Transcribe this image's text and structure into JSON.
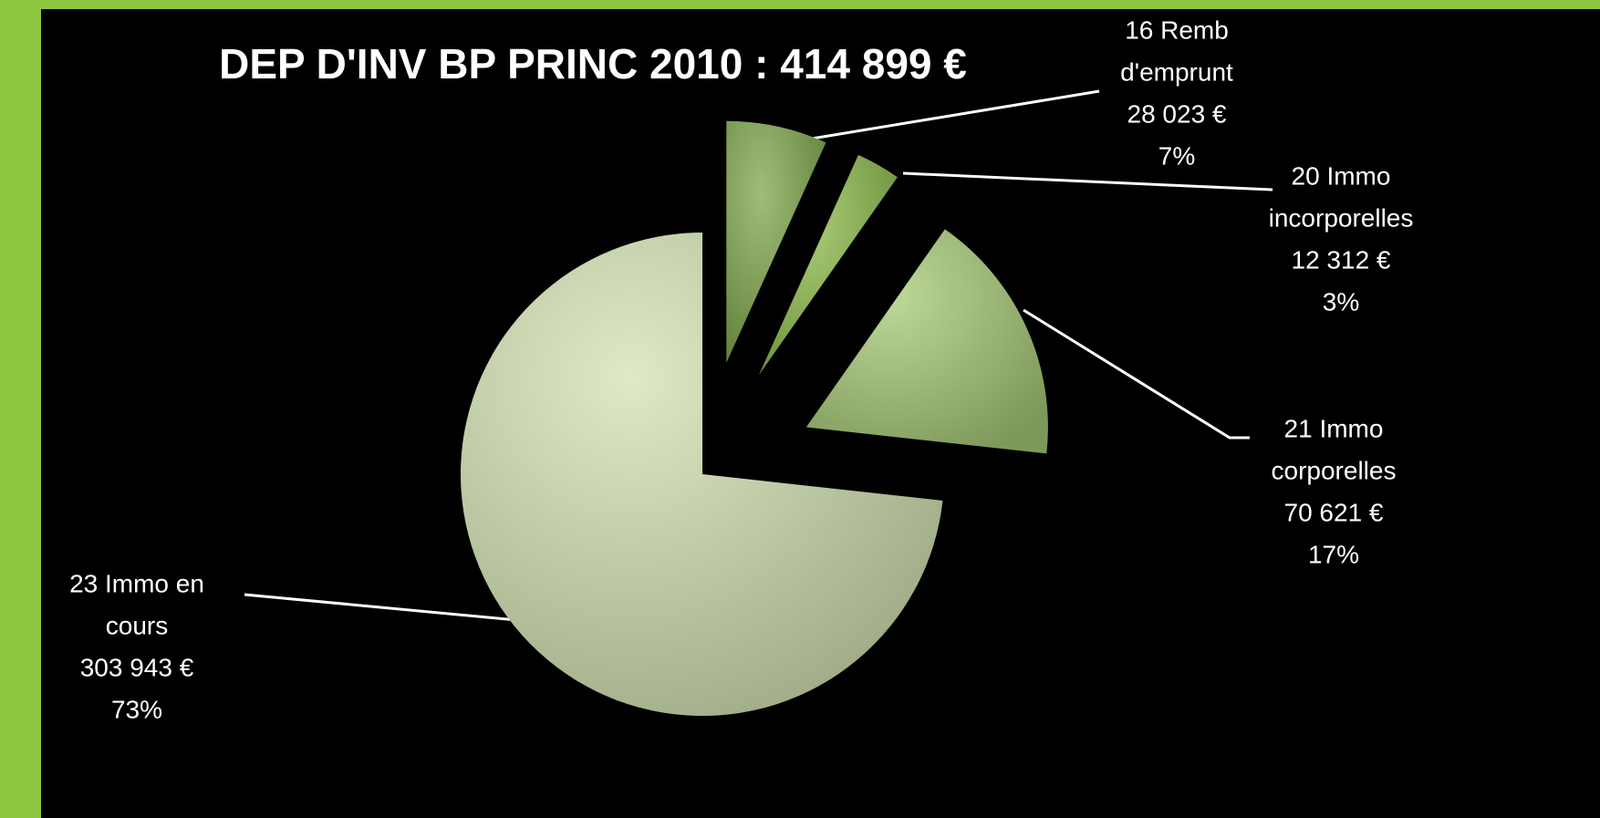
{
  "chart_data": {
    "type": "pie",
    "title": "DEP D'INV BP PRINC 2010 : 414 899 €",
    "categories": [
      [
        "16 Remb",
        "d'emprunt"
      ],
      [
        "20 Immo",
        "incorporelles"
      ],
      [
        "21 Immo",
        "corporelles"
      ],
      [
        "23 Immo en",
        "cours"
      ]
    ],
    "values": [
      28023,
      12312,
      70621,
      303943
    ],
    "value_labels": [
      "28 023 €",
      "12 312 €",
      "70 621 €",
      "303 943 €"
    ],
    "percentages": [
      7,
      3,
      17,
      73
    ],
    "percentage_labels": [
      "7%",
      "3%",
      "17%",
      "73%"
    ],
    "colors": [
      "#7fa84a",
      "#8fbd4c",
      "#a8cb78",
      "#d3e3b2"
    ]
  }
}
